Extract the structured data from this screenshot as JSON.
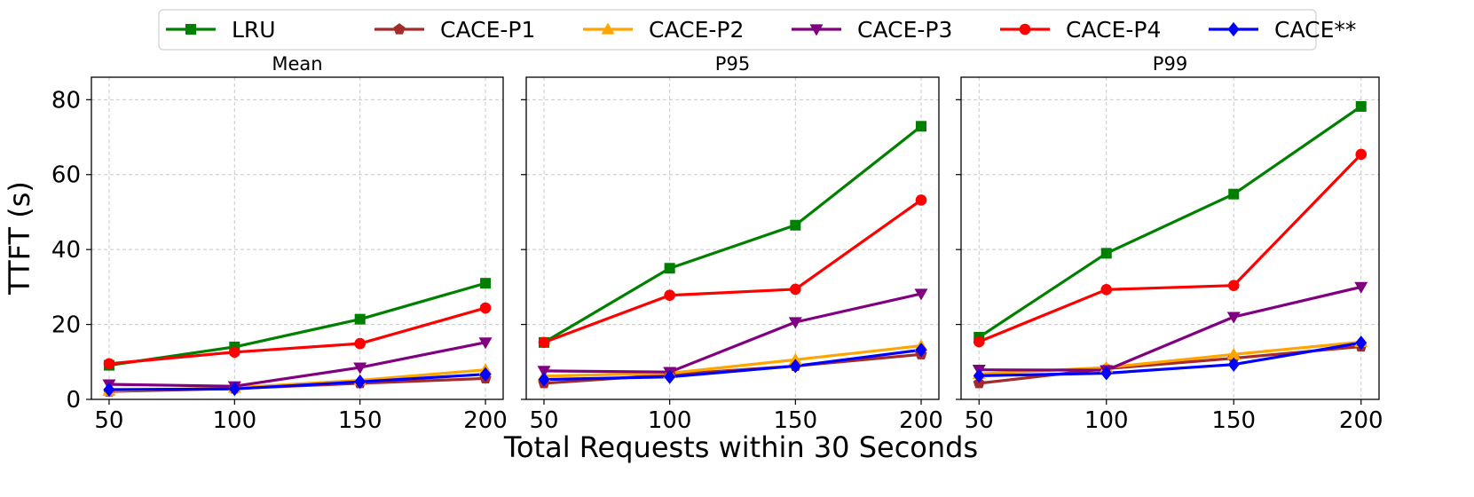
{
  "chart_data": {
    "type": "line",
    "x": [
      50,
      100,
      150,
      200
    ],
    "x_ticks": [
      "50",
      "100",
      "150",
      "200"
    ],
    "y_ticks": [
      "0",
      "20",
      "40",
      "60",
      "80"
    ],
    "ylim": [
      0,
      86
    ],
    "ylabel": "TTFT (s)",
    "xlabel": "Total Requests within 30 Seconds",
    "grid": true,
    "legend_position": "top-center",
    "legend": [
      {
        "name": "LRU",
        "color": "#008000",
        "marker": "square"
      },
      {
        "name": "CACE-P1",
        "color": "#a52a2a",
        "marker": "pentagon"
      },
      {
        "name": "CACE-P2",
        "color": "#ffa500",
        "marker": "triangle-up"
      },
      {
        "name": "CACE-P3",
        "color": "#800080",
        "marker": "triangle-down"
      },
      {
        "name": "CACE-P4",
        "color": "#ff0000",
        "marker": "circle"
      },
      {
        "name": "CACE**",
        "color": "#0000ff",
        "marker": "diamond"
      }
    ],
    "panels": [
      {
        "title": "Mean",
        "series": [
          {
            "name": "LRU",
            "values": [
              9.1,
              14.0,
              21.4,
              31.0
            ]
          },
          {
            "name": "CACE-P1",
            "values": [
              2.1,
              2.9,
              4.3,
              5.6
            ]
          },
          {
            "name": "CACE-P2",
            "values": [
              2.3,
              3.1,
              5.1,
              7.9
            ]
          },
          {
            "name": "CACE-P3",
            "values": [
              4.0,
              3.5,
              8.5,
              15.2
            ]
          },
          {
            "name": "CACE-P4",
            "values": [
              9.5,
              12.6,
              14.9,
              24.4
            ]
          },
          {
            "name": "CACE**",
            "values": [
              2.6,
              2.8,
              4.7,
              6.7
            ]
          }
        ]
      },
      {
        "title": "P95",
        "series": [
          {
            "name": "LRU",
            "values": [
              15.2,
              35.0,
              46.5,
              72.9
            ]
          },
          {
            "name": "CACE-P1",
            "values": [
              4.3,
              6.6,
              8.9,
              12.0
            ]
          },
          {
            "name": "CACE-P2",
            "values": [
              6.2,
              7.0,
              10.6,
              14.3
            ]
          },
          {
            "name": "CACE-P3",
            "values": [
              7.6,
              7.3,
              20.6,
              28.2
            ]
          },
          {
            "name": "CACE-P4",
            "values": [
              15.2,
              27.8,
              29.4,
              53.2
            ]
          },
          {
            "name": "CACE**",
            "values": [
              5.3,
              6.0,
              8.9,
              13.2
            ]
          }
        ]
      },
      {
        "title": "P99",
        "series": [
          {
            "name": "LRU",
            "values": [
              16.6,
              39.0,
              54.8,
              78.2
            ]
          },
          {
            "name": "CACE-P1",
            "values": [
              4.3,
              8.2,
              11.0,
              14.1
            ]
          },
          {
            "name": "CACE-P2",
            "values": [
              6.8,
              8.5,
              12.0,
              15.3
            ]
          },
          {
            "name": "CACE-P3",
            "values": [
              7.9,
              7.8,
              22.0,
              30.0
            ]
          },
          {
            "name": "CACE-P4",
            "values": [
              15.4,
              29.3,
              30.4,
              65.4
            ]
          },
          {
            "name": "CACE**",
            "values": [
              6.3,
              7.0,
              9.3,
              15.1
            ]
          }
        ]
      }
    ]
  }
}
